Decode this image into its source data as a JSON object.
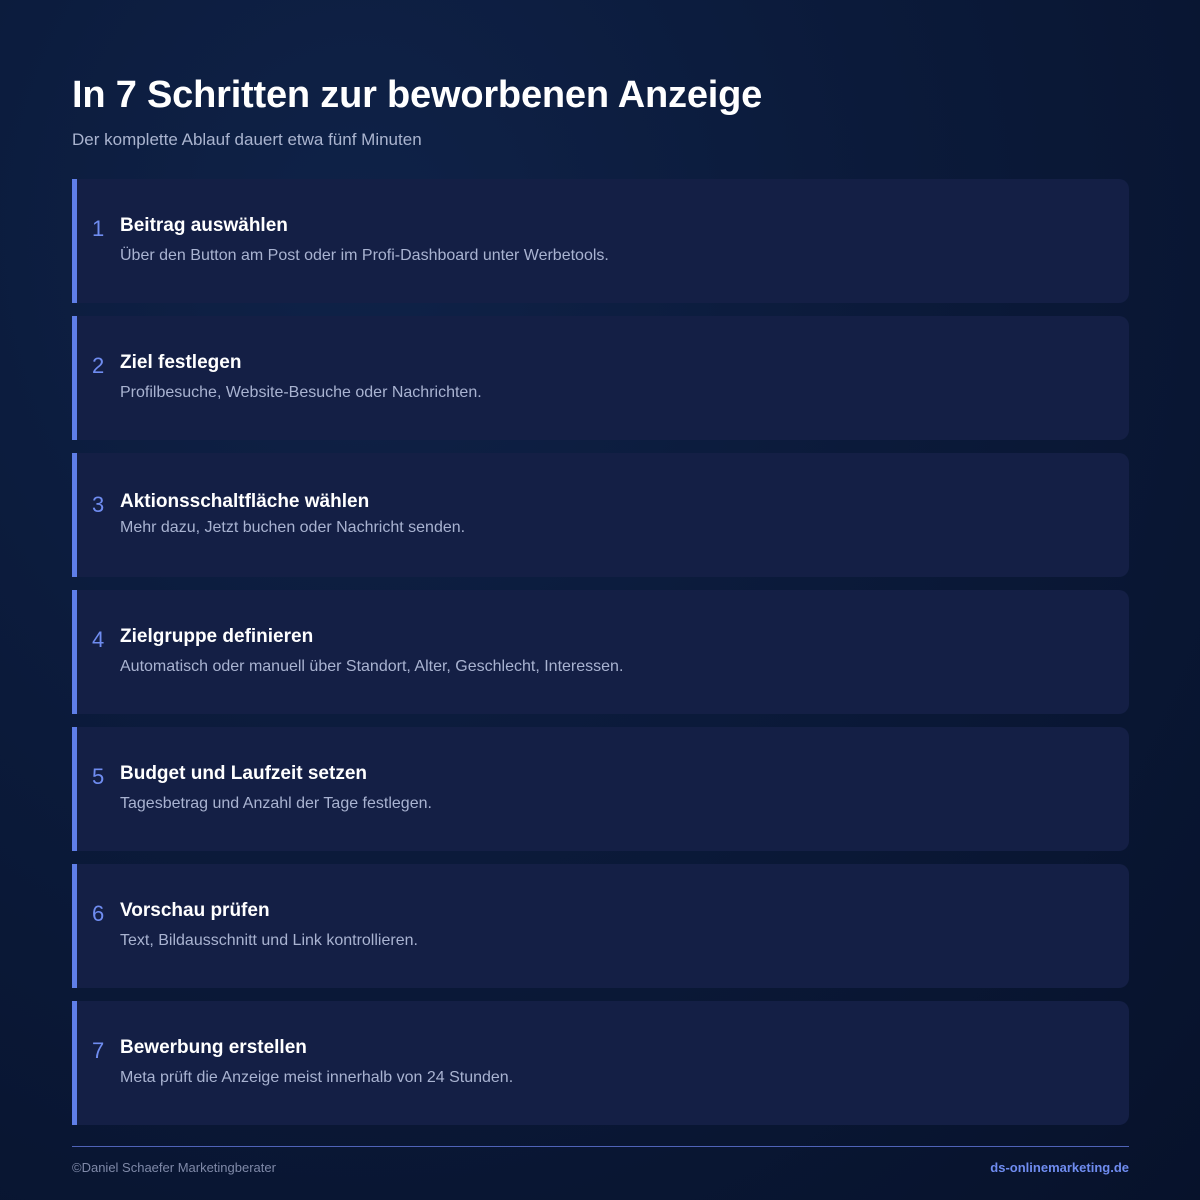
{
  "header": {
    "title": "In 7 Schritten zur beworbenen Anzeige",
    "subtitle": "Der komplette Ablauf dauert etwa fünf Minuten"
  },
  "steps": [
    {
      "number": "1",
      "title": "Beitrag auswählen",
      "description": "Über den Button am Post oder im Profi-Dashboard unter Werbetools."
    },
    {
      "number": "2",
      "title": "Ziel festlegen",
      "description": "Profilbesuche, Website-Besuche oder Nachrichten."
    },
    {
      "number": "3",
      "title": "Aktionsschaltfläche wählen",
      "description": "Mehr dazu, Jetzt buchen oder Nachricht senden."
    },
    {
      "number": "4",
      "title": "Zielgruppe definieren",
      "description": "Automatisch oder manuell über Standort, Alter, Geschlecht, Interessen."
    },
    {
      "number": "5",
      "title": "Budget und Laufzeit setzen",
      "description": "Tagesbetrag und Anzahl der Tage festlegen."
    },
    {
      "number": "6",
      "title": "Vorschau prüfen",
      "description": "Text, Bildausschnitt und Link kontrollieren."
    },
    {
      "number": "7",
      "title": "Bewerbung erstellen",
      "description": "Meta prüft die Anzeige meist innerhalb von 24 Stunden."
    }
  ],
  "footer": {
    "copyright": "©Daniel Schaefer Marketingberater",
    "website": "ds-onlinemarketing.de"
  },
  "colors": {
    "background": "#0b1a3a",
    "card": "#141f45",
    "accent": "#5f7ee8",
    "text_muted": "#a9b3d1"
  }
}
